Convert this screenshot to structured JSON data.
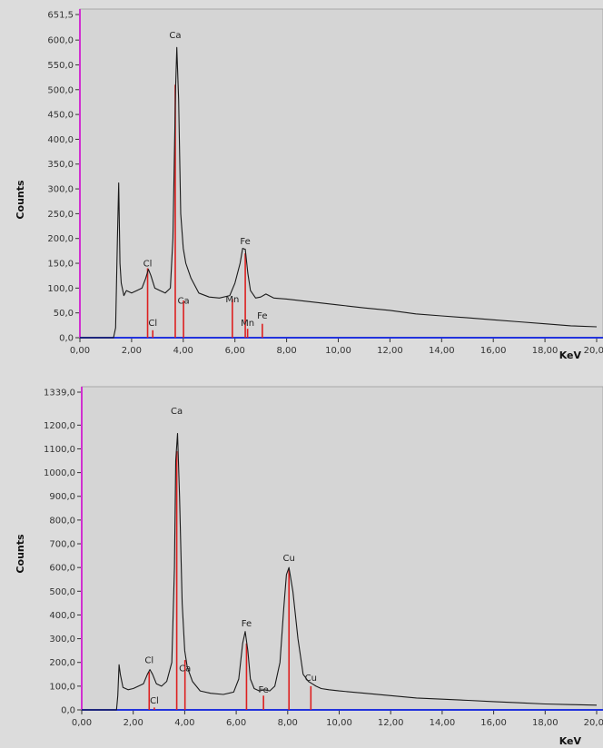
{
  "chart_data": [
    {
      "type": "line",
      "xlabel": "KeV",
      "ylabel": "Counts",
      "xlim": [
        0,
        20
      ],
      "ylim": [
        0,
        651.5
      ],
      "x_ticks": [
        "0,00",
        "2,00",
        "4,00",
        "6,00",
        "8,00",
        "10,00",
        "12,00",
        "14,00",
        "16,00",
        "18,00",
        "20,00"
      ],
      "y_ticks": [
        "0,0",
        "50,0",
        "100,0",
        "150,0",
        "200,0",
        "250,0",
        "300,0",
        "350,0",
        "400,0",
        "450,0",
        "500,0",
        "550,0",
        "600,0",
        "651,5"
      ],
      "y_tick_values": [
        0,
        50,
        100,
        150,
        200,
        250,
        300,
        350,
        400,
        450,
        500,
        550,
        600,
        651.5
      ],
      "series": [
        {
          "x": [
            0,
            1.3,
            1.38,
            1.45,
            1.5,
            1.55,
            1.6,
            1.7,
            1.8,
            2.0,
            2.2,
            2.4,
            2.55,
            2.65,
            2.75,
            2.9,
            3.1,
            3.3,
            3.5,
            3.6,
            3.7,
            3.75,
            3.82,
            3.9,
            4.0,
            4.1,
            4.3,
            4.6,
            5.0,
            5.4,
            5.8,
            6.0,
            6.2,
            6.3,
            6.4,
            6.5,
            6.6,
            6.8,
            7.0,
            7.2,
            7.5,
            8,
            9,
            10,
            11,
            12,
            13,
            14,
            15,
            16,
            17,
            18,
            19,
            20
          ],
          "y": [
            0,
            0,
            20,
            200,
            312,
            150,
            110,
            85,
            95,
            90,
            95,
            100,
            120,
            138,
            125,
            100,
            95,
            90,
            100,
            200,
            500,
            585,
            480,
            250,
            180,
            150,
            120,
            90,
            82,
            80,
            85,
            110,
            150,
            180,
            178,
            130,
            95,
            80,
            82,
            88,
            80,
            78,
            72,
            66,
            60,
            55,
            48,
            44,
            40,
            36,
            32,
            28,
            24,
            22
          ]
        }
      ],
      "peaks": [
        {
          "label": "Ca",
          "x": 3.69,
          "y": 600
        },
        {
          "label": "Cl",
          "x": 2.62,
          "y": 140
        },
        {
          "label": "Ca",
          "x": 4.01,
          "y": 65
        },
        {
          "label": "Cl",
          "x": 2.82,
          "y": 20
        },
        {
          "label": "Fe",
          "x": 6.4,
          "y": 185
        },
        {
          "label": "Mn",
          "x": 5.9,
          "y": 68
        },
        {
          "label": "Mn",
          "x": 6.49,
          "y": 20
        },
        {
          "label": "Fe",
          "x": 7.06,
          "y": 35
        }
      ],
      "markers": [
        {
          "x": 2.62,
          "y": 140
        },
        {
          "x": 2.82,
          "y": 15
        },
        {
          "x": 3.69,
          "y": 510
        },
        {
          "x": 4.01,
          "y": 75
        },
        {
          "x": 5.9,
          "y": 78
        },
        {
          "x": 6.4,
          "y": 170
        },
        {
          "x": 6.49,
          "y": 18
        },
        {
          "x": 7.06,
          "y": 28
        }
      ]
    },
    {
      "type": "line",
      "xlabel": "KeV",
      "ylabel": "Counts",
      "xlim": [
        0,
        20
      ],
      "ylim": [
        0,
        1339
      ],
      "x_ticks": [
        "0,00",
        "2,00",
        "4,00",
        "6,00",
        "8,00",
        "10,00",
        "12,00",
        "14,00",
        "16,00",
        "18,00",
        "20,00"
      ],
      "y_ticks": [
        "0,0",
        "100,0",
        "200,0",
        "300,0",
        "400,0",
        "500,0",
        "600,0",
        "700,0",
        "800,0",
        "900,0",
        "1000,0",
        "1100,0",
        "1200,0",
        "1339,0"
      ],
      "y_tick_values": [
        0,
        100,
        200,
        300,
        400,
        500,
        600,
        700,
        800,
        900,
        1000,
        1100,
        1200,
        1339
      ],
      "series": [
        {
          "x": [
            0,
            1.35,
            1.4,
            1.45,
            1.5,
            1.6,
            1.8,
            2.0,
            2.2,
            2.4,
            2.55,
            2.65,
            2.75,
            2.9,
            3.1,
            3.3,
            3.5,
            3.6,
            3.65,
            3.72,
            3.8,
            3.9,
            4.0,
            4.1,
            4.3,
            4.6,
            5.0,
            5.5,
            5.9,
            6.1,
            6.25,
            6.35,
            6.45,
            6.55,
            6.7,
            6.9,
            7.1,
            7.3,
            7.5,
            7.7,
            7.85,
            7.95,
            8.05,
            8.2,
            8.4,
            8.6,
            8.8,
            8.95,
            9.1,
            9.3,
            9.6,
            10,
            11,
            12,
            13,
            14,
            15,
            16,
            17,
            18,
            19,
            20
          ],
          "y": [
            0,
            0,
            60,
            190,
            150,
            95,
            85,
            90,
            100,
            110,
            150,
            170,
            150,
            110,
            100,
            120,
            200,
            600,
            1050,
            1165,
            900,
            450,
            250,
            180,
            120,
            80,
            70,
            65,
            75,
            130,
            280,
            330,
            250,
            130,
            90,
            80,
            85,
            80,
            100,
            200,
            430,
            570,
            600,
            500,
            300,
            150,
            120,
            110,
            100,
            90,
            85,
            80,
            70,
            60,
            50,
            45,
            40,
            35,
            30,
            25,
            22,
            20
          ]
        }
      ],
      "peaks": [
        {
          "label": "Ca",
          "x": 3.69,
          "y": 1240
        },
        {
          "label": "Cl",
          "x": 2.62,
          "y": 190
        },
        {
          "label": "Ca",
          "x": 4.01,
          "y": 155
        },
        {
          "label": "Cl",
          "x": 2.82,
          "y": 20
        },
        {
          "label": "Fe",
          "x": 6.4,
          "y": 345
        },
        {
          "label": "Fe",
          "x": 7.06,
          "y": 65
        },
        {
          "label": "Cu",
          "x": 8.05,
          "y": 620
        },
        {
          "label": "Cu",
          "x": 8.9,
          "y": 115
        }
      ],
      "markers": [
        {
          "x": 2.62,
          "y": 160
        },
        {
          "x": 2.82,
          "y": 10
        },
        {
          "x": 3.69,
          "y": 1090
        },
        {
          "x": 4.01,
          "y": 210
        },
        {
          "x": 6.4,
          "y": 280
        },
        {
          "x": 7.06,
          "y": 60
        },
        {
          "x": 8.05,
          "y": 590
        },
        {
          "x": 8.9,
          "y": 100
        }
      ]
    }
  ],
  "colors": {
    "background": "#dcdcdc",
    "plot_background": "#d5d5d5",
    "spectrum": "#1a1a1a",
    "marker": "#dd2020",
    "baseline": "#2233dd",
    "left_axis": "#d030d0",
    "panel_border": "#a8a8a8"
  }
}
